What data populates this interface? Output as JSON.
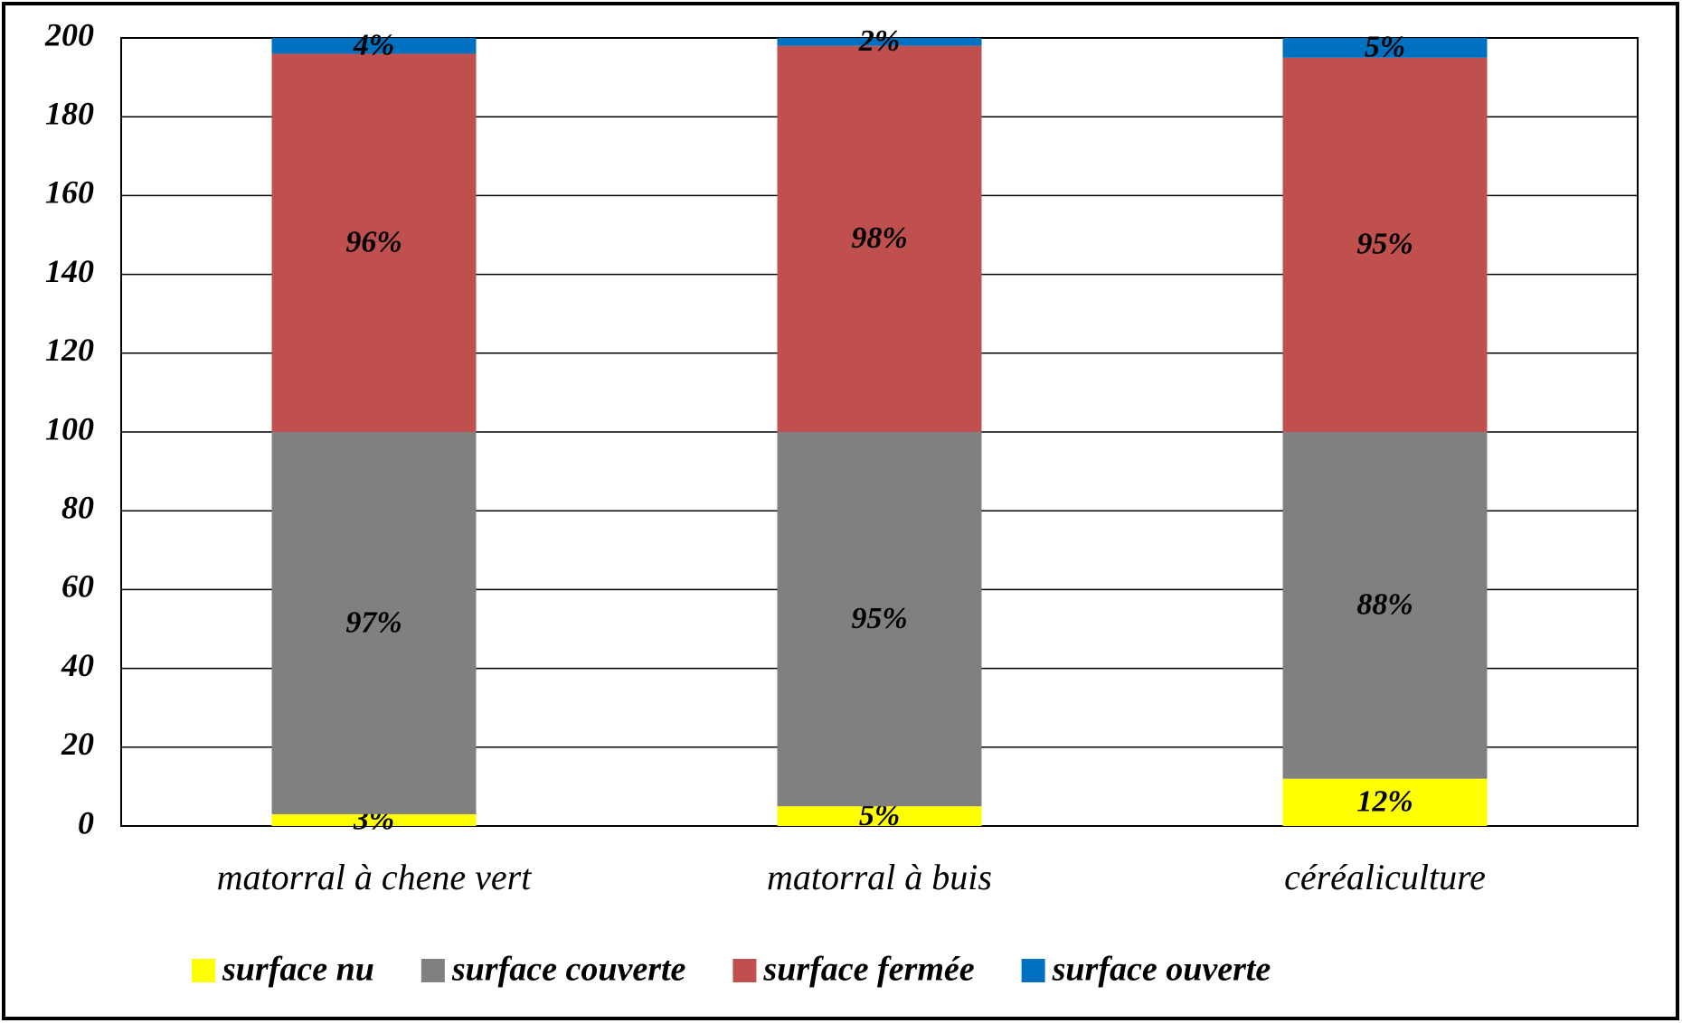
{
  "chart_data": {
    "type": "stacked_bar",
    "categories": [
      "matorral à chene vert",
      "matorral à buis",
      "céréaliculture"
    ],
    "series": [
      {
        "name": "surface nu",
        "color": "#ffff00",
        "values": [
          3,
          5,
          12
        ],
        "value_labels": [
          "3%",
          "5%",
          "12%"
        ]
      },
      {
        "name": "surface couverte",
        "color": "#808080",
        "values": [
          97,
          95,
          88
        ],
        "value_labels": [
          "97%",
          "95%",
          "88%"
        ]
      },
      {
        "name": "surface fermée",
        "color": "#c0504d",
        "values": [
          96,
          98,
          95
        ],
        "value_labels": [
          "96%",
          "98%",
          "95%"
        ]
      },
      {
        "name": "surface ouverte",
        "color": "#0070c0",
        "values": [
          4,
          2,
          5
        ],
        "value_labels": [
          "4%",
          "2%",
          "5%"
        ]
      }
    ],
    "ylim": [
      0,
      200
    ],
    "yticks": [
      0,
      20,
      40,
      60,
      80,
      100,
      120,
      140,
      160,
      180,
      200
    ],
    "grid": true,
    "legend": "bottom"
  }
}
